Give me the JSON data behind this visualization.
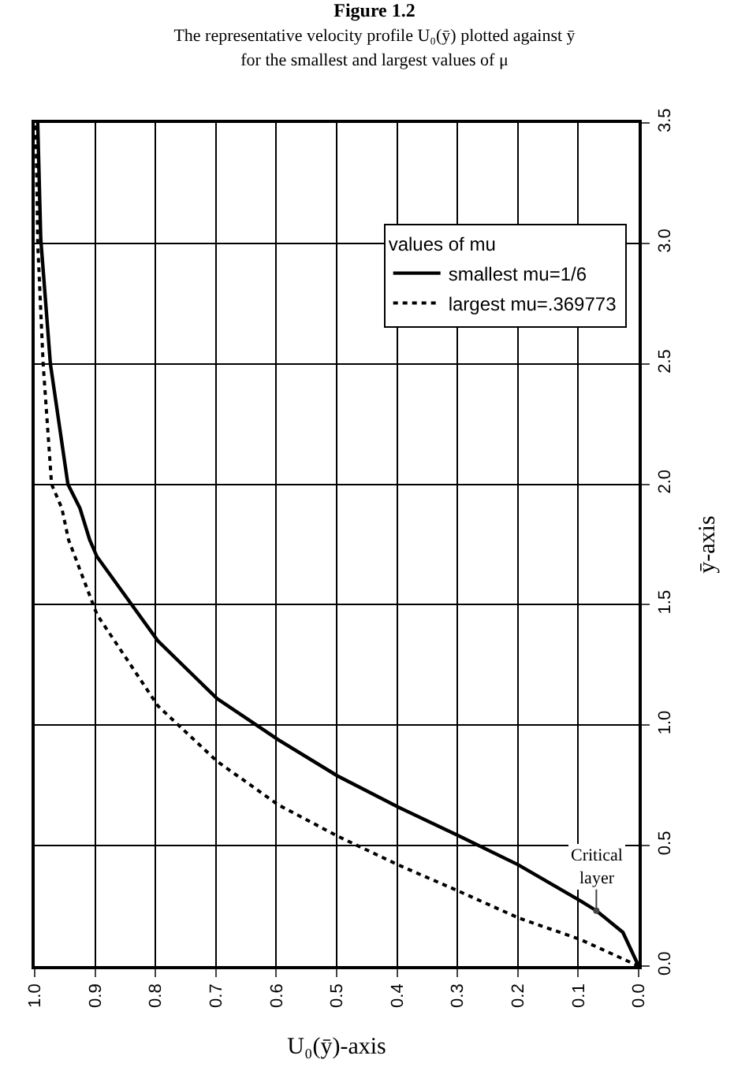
{
  "chart_data": {
    "type": "line",
    "title": "Figure 1.2",
    "subtitle": "The representative velocity profile U₀(ȳ) plotted against ȳ\nfor the smallest and largest values of μ",
    "xlabel": "U₀(ȳ)-axis",
    "ylabel": "ȳ-axis",
    "legend_title": "values of mu",
    "series": [
      {
        "name": "smallest mu=1/6",
        "color": "#000000",
        "line_style": "solid",
        "x": [
          0,
          0.026,
          0.07,
          0.096,
          0.199,
          0.297,
          0.398,
          0.499,
          0.597,
          0.698,
          0.796,
          0.897,
          0.909,
          0.925,
          0.945,
          0.974,
          0.99,
          0.995
        ],
        "values": [
          0,
          0.14,
          0.23,
          0.27,
          0.42,
          0.54,
          0.66,
          0.79,
          0.94,
          1.11,
          1.35,
          1.7,
          1.77,
          1.9,
          2.0,
          2.5,
          3.02,
          3.5
        ]
      },
      {
        "name": "largest mu=.369773",
        "color": "#000000",
        "line_style": "dotted",
        "x": [
          0,
          0.096,
          0.199,
          0.297,
          0.398,
          0.499,
          0.597,
          0.698,
          0.796,
          0.897,
          0.944,
          0.955,
          0.972,
          0.986,
          0.995,
          0.998
        ],
        "values": [
          0,
          0.11,
          0.2,
          0.31,
          0.42,
          0.54,
          0.67,
          0.85,
          1.08,
          1.46,
          1.77,
          1.9,
          2.0,
          2.5,
          3.0,
          3.5
        ]
      }
    ],
    "annotations": [
      {
        "text": "Critical layer",
        "x": 0.07,
        "y": 0.23
      }
    ],
    "xlim": [
      1.0,
      0.0
    ],
    "xticks": [
      {
        "value": 1,
        "label": "1.0"
      },
      0.9,
      0.8,
      0.7,
      0.6,
      0.5,
      0.4,
      0.3,
      0.2,
      0.1,
      {
        "value": 0,
        "label": "0.0"
      }
    ],
    "ylim": [
      0,
      3.5
    ],
    "yticks": [
      {
        "value": 0,
        "label": "0.0"
      },
      0.5,
      {
        "value": 1,
        "label": "1.0"
      },
      1.5,
      {
        "value": 2,
        "label": "2.0"
      },
      2.5,
      {
        "value": 3,
        "label": "3.0"
      },
      3.5
    ],
    "grid": true,
    "legend": "top right"
  }
}
